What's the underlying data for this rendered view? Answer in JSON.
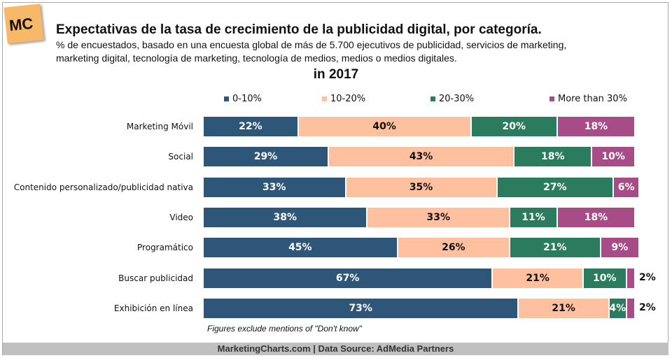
{
  "logo": "MC",
  "chart_data": {
    "type": "bar",
    "stacked": true,
    "orientation": "horizontal",
    "title": "Expectativas de la tasa de crecimiento de la publicidad digital, por categoría.",
    "subtitle_lines": [
      "% de encuestados, basado en una encuesta global de más de 5.700 ejecutivos de publicidad, servicios de marketing,",
      "marketing digital, tecnología de marketing, tecnología de medios, medios o medios digitales."
    ],
    "year_label": "in 2017",
    "legend_position": "top",
    "categories": [
      "Marketing Móvil",
      "Social",
      "Contenido personalizado/publicidad nativa",
      "Video",
      "Programático",
      "Buscar publicidad",
      "Exhibición en línea"
    ],
    "series": [
      {
        "name": "0-10%",
        "color": "#2e5678",
        "values": [
          22,
          29,
          33,
          38,
          45,
          67,
          73
        ]
      },
      {
        "name": "10-20%",
        "color": "#ffc09f",
        "values": [
          40,
          43,
          35,
          33,
          26,
          21,
          21
        ]
      },
      {
        "name": "20-30%",
        "color": "#2b7b5f",
        "values": [
          20,
          18,
          27,
          11,
          21,
          10,
          4
        ]
      },
      {
        "name": "More than 30%",
        "color": "#a84c88",
        "values": [
          18,
          10,
          6,
          18,
          9,
          2,
          2
        ]
      }
    ],
    "xlim": [
      0,
      100
    ],
    "note": "Figures exclude mentions of \"Don't know\""
  },
  "footer": "MarketingCharts.com | Data Source: AdMedia Partners"
}
